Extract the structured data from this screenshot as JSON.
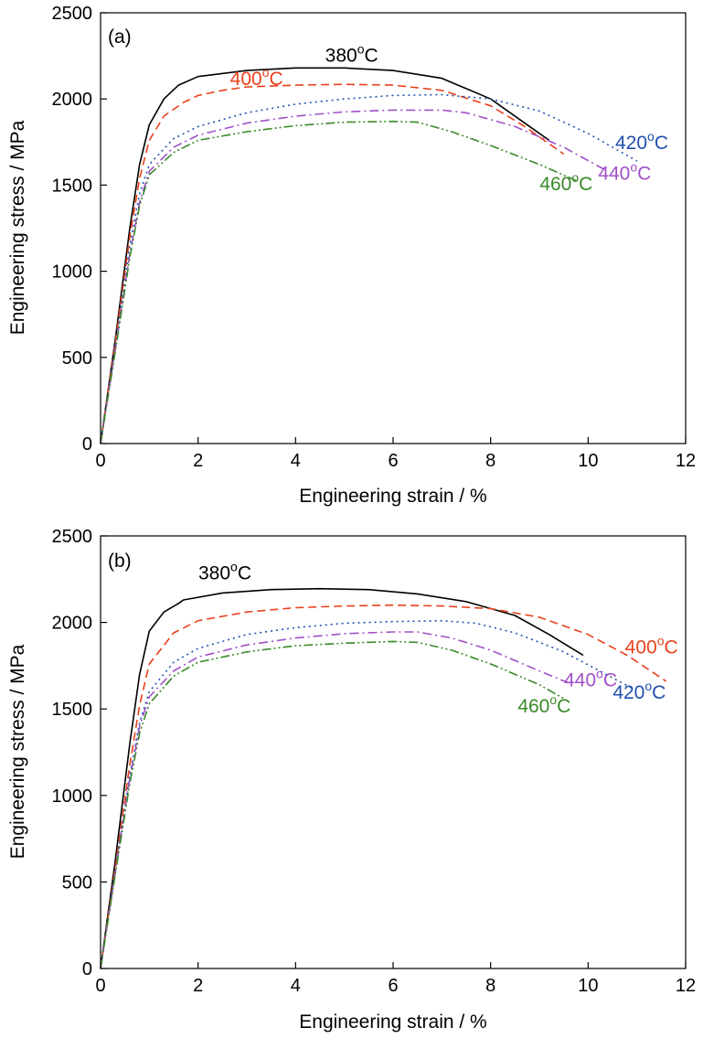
{
  "chart_data": [
    {
      "type": "line",
      "panel_label": "(a)",
      "xlabel": "Engineering strain / %",
      "ylabel": "Engineering stress / MPa",
      "xlim": [
        0,
        12
      ],
      "ylim": [
        0,
        2500
      ],
      "xticks": [
        "0",
        "2",
        "4",
        "6",
        "8",
        "10",
        "12"
      ],
      "yticks": [
        "0",
        "500",
        "1000",
        "1500",
        "2000",
        "2500"
      ],
      "grid": false,
      "series": [
        {
          "name": "380",
          "color": "#000000",
          "dash": "solid",
          "label_pos": [
            5.15,
            2215
          ],
          "points": [
            [
              0,
              0
            ],
            [
              0.3,
              600
            ],
            [
              0.6,
              1250
            ],
            [
              0.8,
              1620
            ],
            [
              1.0,
              1850
            ],
            [
              1.3,
              2000
            ],
            [
              1.6,
              2080
            ],
            [
              2.0,
              2130
            ],
            [
              3.0,
              2165
            ],
            [
              4.0,
              2180
            ],
            [
              5.0,
              2180
            ],
            [
              6.0,
              2165
            ],
            [
              7.0,
              2120
            ],
            [
              8.0,
              2000
            ],
            [
              8.6,
              1880
            ],
            [
              9.2,
              1760
            ]
          ]
        },
        {
          "name": "400",
          "color": "#e8401c",
          "dash": "dashed",
          "label_pos": [
            3.2,
            2080
          ],
          "points": [
            [
              0,
              0
            ],
            [
              0.3,
              580
            ],
            [
              0.6,
              1200
            ],
            [
              0.8,
              1540
            ],
            [
              1.0,
              1760
            ],
            [
              1.3,
              1900
            ],
            [
              1.7,
              1980
            ],
            [
              2.0,
              2020
            ],
            [
              2.5,
              2050
            ],
            [
              3.0,
              2070
            ],
            [
              4.0,
              2080
            ],
            [
              5.0,
              2085
            ],
            [
              6.0,
              2080
            ],
            [
              7.0,
              2050
            ],
            [
              8.0,
              1960
            ],
            [
              8.7,
              1840
            ],
            [
              9.5,
              1680
            ]
          ]
        },
        {
          "name": "420",
          "color": "#2050b0",
          "dash": "dotted",
          "label_pos": [
            11.1,
            1710
          ],
          "points": [
            [
              0,
              0
            ],
            [
              0.3,
              560
            ],
            [
              0.6,
              1150
            ],
            [
              0.8,
              1450
            ],
            [
              1.0,
              1620
            ],
            [
              1.5,
              1770
            ],
            [
              2.0,
              1840
            ],
            [
              3.0,
              1920
            ],
            [
              4.0,
              1970
            ],
            [
              5.0,
              2000
            ],
            [
              6.0,
              2020
            ],
            [
              7.0,
              2025
            ],
            [
              8.0,
              2000
            ],
            [
              9.0,
              1930
            ],
            [
              10.0,
              1800
            ],
            [
              11.0,
              1640
            ]
          ]
        },
        {
          "name": "440",
          "color": "#a050c8",
          "dash": "dashdot",
          "label_pos": [
            10.75,
            1530
          ],
          "points": [
            [
              0,
              0
            ],
            [
              0.3,
              540
            ],
            [
              0.6,
              1100
            ],
            [
              0.8,
              1400
            ],
            [
              1.0,
              1580
            ],
            [
              1.5,
              1720
            ],
            [
              2.0,
              1790
            ],
            [
              3.0,
              1860
            ],
            [
              4.0,
              1900
            ],
            [
              5.0,
              1925
            ],
            [
              6.0,
              1935
            ],
            [
              7.0,
              1935
            ],
            [
              7.5,
              1920
            ],
            [
              8.5,
              1840
            ],
            [
              9.5,
              1720
            ],
            [
              10.4,
              1580
            ]
          ]
        },
        {
          "name": "460",
          "color": "#3a8a2a",
          "dash": "dashdotdot",
          "label_pos": [
            9.55,
            1470
          ],
          "points": [
            [
              0,
              0
            ],
            [
              0.3,
              530
            ],
            [
              0.6,
              1080
            ],
            [
              0.8,
              1380
            ],
            [
              1.0,
              1560
            ],
            [
              1.5,
              1690
            ],
            [
              2.0,
              1760
            ],
            [
              3.0,
              1810
            ],
            [
              4.0,
              1845
            ],
            [
              5.0,
              1865
            ],
            [
              6.0,
              1870
            ],
            [
              6.5,
              1865
            ],
            [
              7.2,
              1810
            ],
            [
              8.0,
              1730
            ],
            [
              9.0,
              1620
            ],
            [
              9.8,
              1520
            ]
          ]
        }
      ]
    },
    {
      "type": "line",
      "panel_label": "(b)",
      "xlabel": "Engineering strain / %",
      "ylabel": "Engineering stress / MPa",
      "xlim": [
        0,
        12
      ],
      "ylim": [
        0,
        2500
      ],
      "xticks": [
        "0",
        "2",
        "4",
        "6",
        "8",
        "10",
        "12"
      ],
      "yticks": [
        "0",
        "500",
        "1000",
        "1500",
        "2000",
        "2500"
      ],
      "grid": false,
      "series": [
        {
          "name": "380",
          "color": "#000000",
          "dash": "solid",
          "label_pos": [
            2.55,
            2250
          ],
          "points": [
            [
              0,
              0
            ],
            [
              0.3,
              620
            ],
            [
              0.6,
              1300
            ],
            [
              0.8,
              1700
            ],
            [
              1.0,
              1950
            ],
            [
              1.3,
              2060
            ],
            [
              1.6,
              2110
            ],
            [
              1.7,
              2130
            ],
            [
              2.5,
              2170
            ],
            [
              3.5,
              2190
            ],
            [
              4.5,
              2195
            ],
            [
              5.5,
              2190
            ],
            [
              6.5,
              2165
            ],
            [
              7.5,
              2120
            ],
            [
              8.5,
              2040
            ],
            [
              9.2,
              1930
            ],
            [
              9.9,
              1810
            ]
          ]
        },
        {
          "name": "400",
          "color": "#e8401c",
          "dash": "dashed",
          "label_pos": [
            11.3,
            1820
          ],
          "points": [
            [
              0,
              0
            ],
            [
              0.3,
              580
            ],
            [
              0.6,
              1180
            ],
            [
              0.8,
              1520
            ],
            [
              1.0,
              1760
            ],
            [
              1.5,
              1940
            ],
            [
              2.0,
              2010
            ],
            [
              3.0,
              2060
            ],
            [
              4.0,
              2085
            ],
            [
              5.0,
              2095
            ],
            [
              6.0,
              2100
            ],
            [
              7.0,
              2095
            ],
            [
              8.0,
              2080
            ],
            [
              9.0,
              2030
            ],
            [
              10.0,
              1930
            ],
            [
              10.8,
              1810
            ],
            [
              11.6,
              1660
            ]
          ]
        },
        {
          "name": "420",
          "color": "#2050b0",
          "dash": "dotted",
          "label_pos": [
            11.05,
            1560
          ],
          "points": [
            [
              0,
              0
            ],
            [
              0.3,
              560
            ],
            [
              0.6,
              1120
            ],
            [
              0.8,
              1420
            ],
            [
              1.0,
              1600
            ],
            [
              1.5,
              1770
            ],
            [
              2.0,
              1850
            ],
            [
              3.0,
              1930
            ],
            [
              4.0,
              1970
            ],
            [
              5.0,
              1995
            ],
            [
              6.0,
              2005
            ],
            [
              7.0,
              2010
            ],
            [
              7.7,
              1995
            ],
            [
              8.5,
              1940
            ],
            [
              9.5,
              1830
            ],
            [
              10.5,
              1680
            ],
            [
              10.9,
              1620
            ]
          ]
        },
        {
          "name": "440",
          "color": "#a050c8",
          "dash": "dashdot",
          "label_pos": [
            10.05,
            1630
          ],
          "points": [
            [
              0,
              0
            ],
            [
              0.3,
              550
            ],
            [
              0.6,
              1100
            ],
            [
              0.8,
              1400
            ],
            [
              1.0,
              1570
            ],
            [
              1.5,
              1720
            ],
            [
              2.0,
              1800
            ],
            [
              3.0,
              1870
            ],
            [
              4.0,
              1910
            ],
            [
              5.0,
              1935
            ],
            [
              6.0,
              1945
            ],
            [
              6.5,
              1945
            ],
            [
              7.2,
              1910
            ],
            [
              8.0,
              1840
            ],
            [
              9.0,
              1720
            ],
            [
              9.6,
              1650
            ]
          ]
        },
        {
          "name": "460",
          "color": "#3a8a2a",
          "dash": "dashdotdot",
          "label_pos": [
            9.1,
            1480
          ],
          "points": [
            [
              0,
              0
            ],
            [
              0.3,
              540
            ],
            [
              0.6,
              1070
            ],
            [
              0.8,
              1360
            ],
            [
              1.0,
              1530
            ],
            [
              1.5,
              1690
            ],
            [
              2.0,
              1770
            ],
            [
              3.0,
              1830
            ],
            [
              4.0,
              1865
            ],
            [
              5.0,
              1880
            ],
            [
              6.0,
              1890
            ],
            [
              6.5,
              1885
            ],
            [
              7.2,
              1840
            ],
            [
              8.0,
              1760
            ],
            [
              9.0,
              1640
            ],
            [
              9.5,
              1560
            ]
          ]
        }
      ]
    }
  ],
  "label_unit": "C",
  "label_degree": "o",
  "colors": {
    "axis": "#000000",
    "background": "#ffffff"
  }
}
